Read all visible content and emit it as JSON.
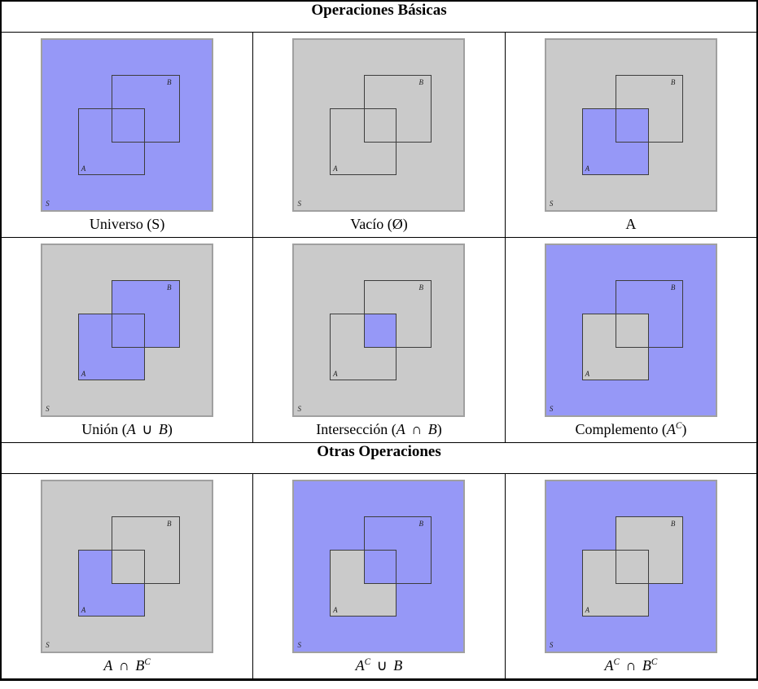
{
  "colors": {
    "blue": "#9698f7",
    "gray": "#cacaca",
    "panel_frame": "#a0a0a0",
    "square_outline": "#3d3d3d",
    "table_border": "#000000"
  },
  "panel_labels": {
    "s": "S",
    "a": "A",
    "b": "B"
  },
  "table": {
    "sections": [
      {
        "header": "Operaciones Básicas",
        "rows": [
          [
            {
              "caption": [
                {
                  "text": "Universo (S)"
                }
              ],
              "regions": {
                "rest": "blue",
                "a": "blue",
                "b": "blue",
                "overlap": "blue"
              }
            },
            {
              "caption": [
                {
                  "text": "Vacío (Ø)"
                }
              ],
              "regions": {
                "rest": "gray",
                "a": "gray",
                "b": "gray",
                "overlap": "gray"
              }
            },
            {
              "caption": [
                {
                  "text": "A"
                }
              ],
              "regions": {
                "rest": "gray",
                "a": "blue",
                "b": "gray",
                "overlap": "blue"
              }
            }
          ],
          [
            {
              "caption": [
                {
                  "text": "Unión ("
                },
                {
                  "text": "A",
                  "i": true
                },
                {
                  "text": "∪",
                  "op": true
                },
                {
                  "text": "B",
                  "i": true
                },
                {
                  "text": ")"
                }
              ],
              "regions": {
                "rest": "gray",
                "a": "blue",
                "b": "blue",
                "overlap": "blue"
              }
            },
            {
              "caption": [
                {
                  "text": "Intersección ("
                },
                {
                  "text": "A",
                  "i": true
                },
                {
                  "text": "∩",
                  "op": true
                },
                {
                  "text": "B",
                  "i": true
                },
                {
                  "text": ")"
                }
              ],
              "regions": {
                "rest": "gray",
                "a": "gray",
                "b": "gray",
                "overlap": "blue"
              }
            },
            {
              "caption": [
                {
                  "text": "Complemento ("
                },
                {
                  "text": "A",
                  "i": true
                },
                {
                  "text": "C",
                  "i": true,
                  "sup": true
                },
                {
                  "text": ")"
                }
              ],
              "regions": {
                "rest": "blue",
                "a": "gray",
                "b": "blue",
                "overlap": "gray"
              }
            }
          ]
        ]
      },
      {
        "header": "Otras Operaciones",
        "rows": [
          [
            {
              "caption": [
                {
                  "text": "A",
                  "i": true
                },
                {
                  "text": "∩",
                  "op": true
                },
                {
                  "text": "B",
                  "i": true
                },
                {
                  "text": "C",
                  "i": true,
                  "sup": true
                }
              ],
              "regions": {
                "rest": "gray",
                "a": "blue",
                "b": "gray",
                "overlap": "gray"
              }
            },
            {
              "caption": [
                {
                  "text": "A",
                  "i": true
                },
                {
                  "text": "C",
                  "i": true,
                  "sup": true
                },
                {
                  "text": "∪",
                  "op": true
                },
                {
                  "text": "B",
                  "i": true
                }
              ],
              "regions": {
                "rest": "blue",
                "a": "gray",
                "b": "blue",
                "overlap": "blue"
              }
            },
            {
              "caption": [
                {
                  "text": "A",
                  "i": true
                },
                {
                  "text": "C",
                  "i": true,
                  "sup": true
                },
                {
                  "text": "∩",
                  "op": true
                },
                {
                  "text": "B",
                  "i": true
                },
                {
                  "text": "C",
                  "i": true,
                  "sup": true
                }
              ],
              "regions": {
                "rest": "blue",
                "a": "gray",
                "b": "gray",
                "overlap": "gray"
              }
            }
          ]
        ]
      }
    ]
  }
}
